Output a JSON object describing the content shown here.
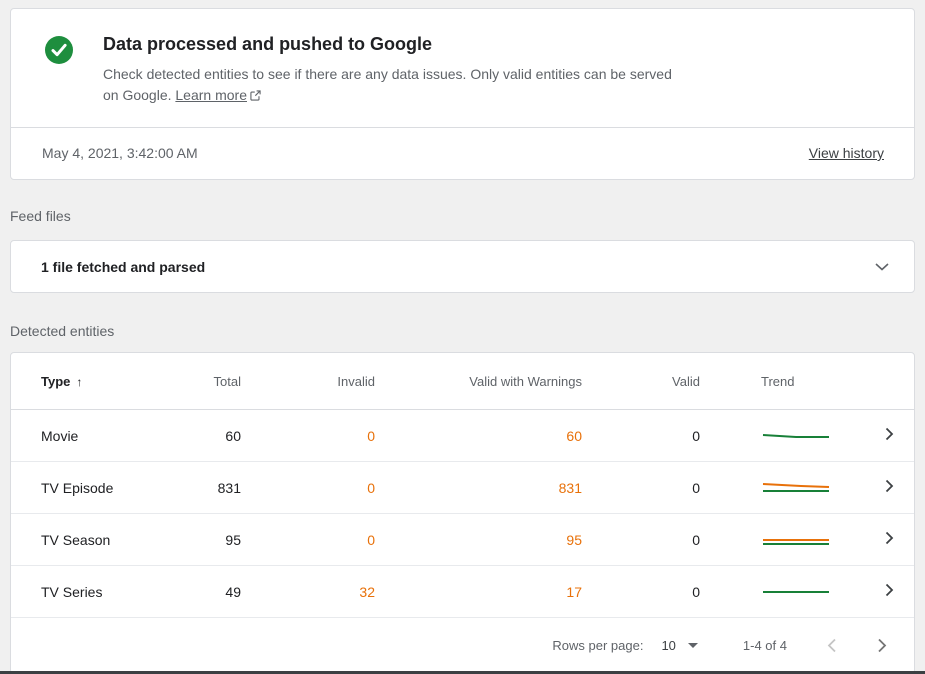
{
  "status_card": {
    "title": "Data processed and pushed to Google",
    "description": "Check detected entities to see if there are any data issues. Only valid entities can be served on Google.",
    "learn_more_label": "Learn more",
    "timestamp": "May 4, 2021, 3:42:00 AM",
    "view_history_label": "View history"
  },
  "feed_files": {
    "section_label": "Feed files",
    "summary": "1 file fetched and parsed"
  },
  "detected_entities": {
    "section_label": "Detected entities",
    "columns": {
      "type": "Type",
      "total": "Total",
      "invalid": "Invalid",
      "valid_with_warnings": "Valid with Warnings",
      "valid": "Valid",
      "trend": "Trend"
    },
    "sort_glyph": "↑",
    "rows": [
      {
        "type": "Movie",
        "total": "60",
        "invalid": "0",
        "valid_with_warnings": "60",
        "valid": "0",
        "trend": [
          {
            "color": "#188038",
            "points": [
              [
                2,
                7
              ],
              [
                35,
                9
              ],
              [
                68,
                9
              ]
            ]
          }
        ]
      },
      {
        "type": "TV Episode",
        "total": "831",
        "invalid": "0",
        "valid_with_warnings": "831",
        "valid": "0",
        "trend": [
          {
            "color": "#e8710a",
            "points": [
              [
                2,
                4
              ],
              [
                40,
                6
              ],
              [
                68,
                7
              ]
            ]
          },
          {
            "color": "#188038",
            "points": [
              [
                2,
                11
              ],
              [
                68,
                11
              ]
            ]
          }
        ]
      },
      {
        "type": "TV Season",
        "total": "95",
        "invalid": "0",
        "valid_with_warnings": "95",
        "valid": "0",
        "trend": [
          {
            "color": "#e8710a",
            "points": [
              [
                2,
                8
              ],
              [
                68,
                8
              ]
            ]
          },
          {
            "color": "#188038",
            "points": [
              [
                2,
                12
              ],
              [
                68,
                12
              ]
            ]
          }
        ]
      },
      {
        "type": "TV Series",
        "total": "49",
        "invalid": "32",
        "valid_with_warnings": "17",
        "valid": "0",
        "trend": [
          {
            "color": "#188038",
            "points": [
              [
                2,
                8
              ],
              [
                68,
                8
              ]
            ]
          }
        ]
      }
    ],
    "pagination": {
      "rows_per_page_label": "Rows per page:",
      "rows_per_page_value": "10",
      "range_label": "1-4 of 4"
    }
  },
  "icons": {
    "status": "check-circle",
    "learn_more": "external-link",
    "feed_toggle": "chevron-down",
    "sort": "arrow-up",
    "row_action": "chevron-right",
    "rows_per_page": "caret-down",
    "prev_page": "chevron-left",
    "next_page": "chevron-right"
  },
  "colors": {
    "success_green": "#1e8e3e",
    "trend_green": "#188038",
    "warning_orange": "#e8710a",
    "card_border": "#dadce0",
    "muted_text": "#5f6368"
  }
}
